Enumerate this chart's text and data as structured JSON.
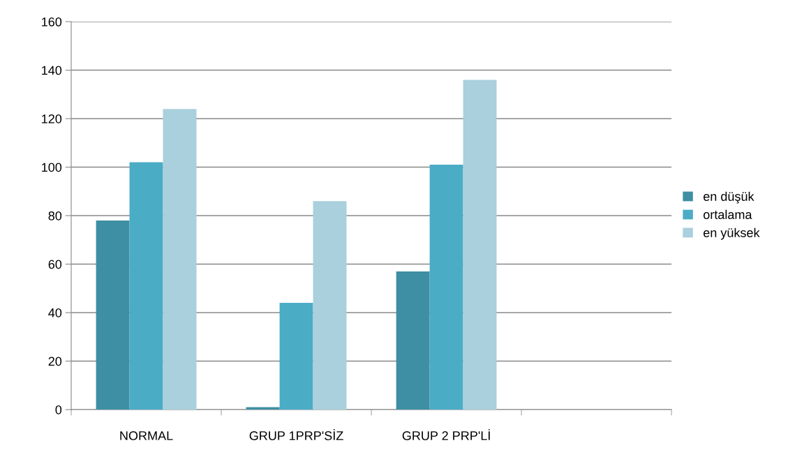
{
  "chart_data": {
    "type": "bar",
    "categories": [
      "NORMAL",
      "GRUP 1PRP'SİZ",
      "GRUP 2 PRP'Lİ",
      null
    ],
    "series": [
      {
        "name": "en düşük",
        "color": "#3e8fa3",
        "values": [
          78,
          1,
          57,
          null
        ]
      },
      {
        "name": "ortalama",
        "color": "#4bacc6",
        "values": [
          102,
          44,
          101,
          null
        ]
      },
      {
        "name": "en yüksek",
        "color": "#a9d0dc",
        "values": [
          124,
          86,
          136,
          null
        ]
      }
    ],
    "ylim": [
      0,
      160
    ],
    "yticks": [
      0,
      20,
      40,
      60,
      80,
      100,
      120,
      140,
      160
    ],
    "grid": "y",
    "legend": "right"
  }
}
